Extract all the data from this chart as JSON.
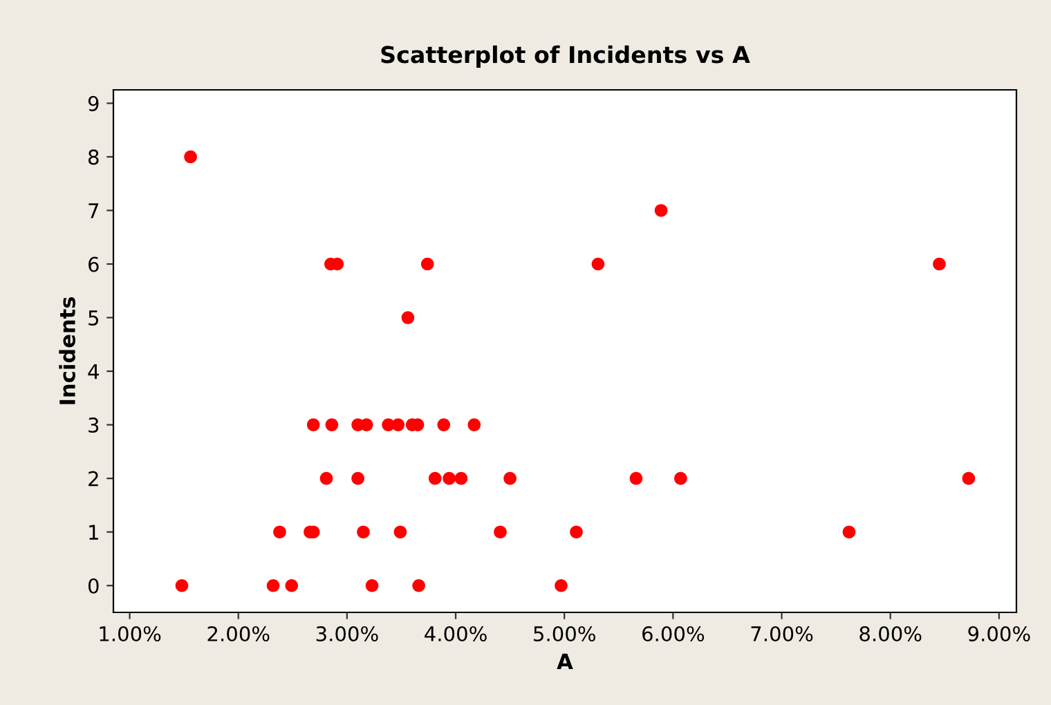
{
  "chart_data": {
    "type": "scatter",
    "title": "Scatterplot of Incidents vs A",
    "xlabel": "A",
    "ylabel": "Incidents",
    "series": [
      {
        "color": "#ff0000",
        "x": [
          1.48,
          1.56,
          2.32,
          2.49,
          2.38,
          2.66,
          2.69,
          2.69,
          2.81,
          2.85,
          2.86,
          2.91,
          3.1,
          3.1,
          3.15,
          3.18,
          3.23,
          3.38,
          3.47,
          3.49,
          3.56,
          3.6,
          3.65,
          3.66,
          3.74,
          3.81,
          3.89,
          3.94,
          4.05,
          4.17,
          4.41,
          4.5,
          4.97,
          5.11,
          5.31,
          5.66,
          5.89,
          6.07,
          7.62,
          8.45,
          8.72
        ],
        "values": [
          0,
          8,
          0,
          0,
          1,
          1,
          1,
          3,
          2,
          6,
          3,
          6,
          3,
          2,
          1,
          3,
          0,
          3,
          3,
          1,
          5,
          3,
          3,
          0,
          6,
          2,
          3,
          2,
          2,
          3,
          1,
          2,
          0,
          1,
          6,
          2,
          7,
          2,
          1,
          6,
          2
        ]
      }
    ],
    "xlim": [
      0.85,
      9.16
    ],
    "ylim": [
      -0.5,
      9.25
    ],
    "xticks": [
      {
        "value": 1,
        "label": "1.00%"
      },
      {
        "value": 2,
        "label": "2.00%"
      },
      {
        "value": 3,
        "label": "3.00%"
      },
      {
        "value": 4,
        "label": "4.00%"
      },
      {
        "value": 5,
        "label": "5.00%"
      },
      {
        "value": 6,
        "label": "6.00%"
      },
      {
        "value": 7,
        "label": "7.00%"
      },
      {
        "value": 8,
        "label": "8.00%"
      },
      {
        "value": 9,
        "label": "9.00%"
      }
    ],
    "yticks": [
      0,
      1,
      2,
      3,
      4,
      5,
      6,
      7,
      8,
      9
    ],
    "marker": "circle",
    "grid": false
  }
}
